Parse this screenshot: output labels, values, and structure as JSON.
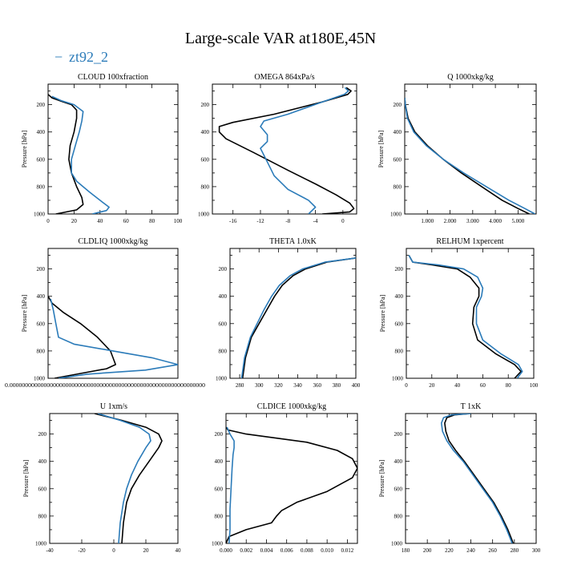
{
  "figure": {
    "title": "Large-scale VAR at180E,45N",
    "legend_label": "zt92_2",
    "legend_mark": "−"
  },
  "colors": {
    "series_ref": "#000000",
    "series_zt92_2": "#2b7bb9"
  },
  "chart_data": [
    {
      "type": "line",
      "title": "CLOUD  100xfraction",
      "ylabel": "Pressure [hPa]",
      "xlim": [
        0,
        100
      ],
      "ylim": [
        1000,
        50
      ],
      "xticks": [
        0,
        20,
        40,
        60,
        80,
        100
      ],
      "xtick_labels": [
        "0",
        "20",
        "40",
        "60",
        "80",
        "100"
      ],
      "yticks": [
        200,
        400,
        600,
        800,
        1000
      ],
      "series": [
        {
          "name": "reference",
          "color": "#000000",
          "x": [
            0,
            3,
            10,
            18,
            22,
            22,
            20,
            17,
            16,
            18,
            22,
            26,
            27,
            22,
            6
          ],
          "y": [
            125,
            150,
            175,
            200,
            240,
            300,
            400,
            500,
            600,
            700,
            800,
            880,
            930,
            970,
            1000
          ]
        },
        {
          "name": "zt92_2",
          "color": "#2b7bb9",
          "x": [
            3,
            10,
            20,
            27,
            26,
            24,
            21,
            18,
            18,
            22,
            32,
            40,
            47,
            45,
            34
          ],
          "y": [
            140,
            170,
            200,
            250,
            320,
            400,
            500,
            600,
            700,
            760,
            840,
            900,
            950,
            975,
            1000
          ]
        }
      ]
    },
    {
      "type": "line",
      "title": "OMEGA  864xPa/s",
      "ylabel": "",
      "xlim": [
        -19,
        2
      ],
      "ylim": [
        1000,
        50
      ],
      "xticks": [
        -16,
        -12,
        -8,
        -4,
        0
      ],
      "xtick_labels": [
        "-16",
        "-12",
        "-8",
        "-4",
        "0"
      ],
      "yticks": [
        200,
        400,
        600,
        800,
        1000
      ],
      "series": [
        {
          "name": "reference",
          "color": "#000000",
          "x": [
            0.5,
            1.2,
            0.7,
            -3,
            -10,
            -16,
            -18,
            -18,
            -17,
            -13,
            -8,
            -4,
            -1,
            1,
            1.6,
            1,
            -3
          ],
          "y": [
            75,
            100,
            125,
            180,
            270,
            330,
            360,
            400,
            450,
            550,
            680,
            780,
            860,
            920,
            960,
            985,
            1000
          ]
        },
        {
          "name": "zt92_2",
          "color": "#2b7bb9",
          "x": [
            0.3,
            0.8,
            0.2,
            -3,
            -8,
            -11.5,
            -12,
            -11,
            -11,
            -12,
            -11,
            -10,
            -8,
            -5,
            -4,
            -5
          ],
          "y": [
            75,
            100,
            125,
            180,
            270,
            320,
            360,
            420,
            470,
            520,
            620,
            720,
            820,
            900,
            950,
            1000
          ]
        }
      ]
    },
    {
      "type": "line",
      "title": "Q  1000xkg/kg",
      "ylabel": "Pressure [hPa]",
      "xlim": [
        0,
        5.8
      ],
      "ylim": [
        1000,
        50
      ],
      "xticks": [
        1.0,
        2.0,
        3.0,
        4.0,
        5.0
      ],
      "xtick_labels": [
        "1.000",
        "2.000",
        "3.000",
        "4.000",
        "5.000"
      ],
      "yticks": [
        200,
        400,
        600,
        800,
        1000
      ],
      "series": [
        {
          "name": "reference",
          "color": "#000000",
          "x": [
            0.0,
            0.03,
            0.15,
            0.45,
            1.0,
            1.7,
            2.5,
            3.4,
            4.3,
            5.0,
            5.5
          ],
          "y": [
            150,
            200,
            300,
            400,
            500,
            600,
            700,
            800,
            900,
            960,
            1000
          ]
        },
        {
          "name": "zt92_2",
          "color": "#2b7bb9",
          "x": [
            0.0,
            0.03,
            0.12,
            0.4,
            0.95,
            1.7,
            2.6,
            3.6,
            4.6,
            5.3,
            5.75
          ],
          "y": [
            150,
            200,
            300,
            400,
            500,
            600,
            700,
            800,
            900,
            960,
            1000
          ]
        }
      ]
    },
    {
      "type": "line",
      "title": "CLDLIQ  1000xkg/kg",
      "ylabel": "Pressure [hPa]",
      "xlim": [
        0,
        1
      ],
      "ylim": [
        1000,
        50
      ],
      "xticks": [],
      "xtick_labels": [],
      "xtick_overflow_text": "0.000000000000000000000000000000000000000000000000000000000000000",
      "yticks": [
        200,
        400,
        600,
        800,
        1000
      ],
      "series": [
        {
          "name": "reference",
          "color": "#000000",
          "x": [
            0.0,
            0.03,
            0.12,
            0.25,
            0.38,
            0.48,
            0.52,
            0.45,
            0.25,
            0.05
          ],
          "y": [
            400,
            450,
            520,
            600,
            700,
            800,
            900,
            930,
            965,
            1000
          ]
        },
        {
          "name": "zt92_2",
          "color": "#2b7bb9",
          "x": [
            0.02,
            0.04,
            0.06,
            0.08,
            0.2,
            0.5,
            0.8,
            1.0,
            0.75,
            0.3,
            0.08
          ],
          "y": [
            420,
            500,
            600,
            700,
            750,
            800,
            850,
            900,
            940,
            970,
            1000
          ]
        }
      ]
    },
    {
      "type": "line",
      "title": "THETA  1.0xK",
      "ylabel": "",
      "xlim": [
        270,
        400
      ],
      "ylim": [
        1000,
        50
      ],
      "xticks": [
        280,
        300,
        320,
        340,
        360,
        380,
        400
      ],
      "xtick_labels": [
        "280",
        "300",
        "320",
        "340",
        "360",
        "380",
        "400"
      ],
      "yticks": [
        200,
        400,
        600,
        800,
        1000
      ],
      "series": [
        {
          "name": "reference",
          "color": "#000000",
          "x": [
            400,
            370,
            348,
            335,
            324,
            316,
            308,
            300,
            292,
            286,
            283
          ],
          "y": [
            120,
            150,
            200,
            250,
            320,
            400,
            500,
            600,
            700,
            850,
            1000
          ]
        },
        {
          "name": "zt92_2",
          "color": "#2b7bb9",
          "x": [
            400,
            368,
            345,
            332,
            321,
            313,
            305,
            298,
            291,
            285,
            282
          ],
          "y": [
            120,
            150,
            200,
            250,
            320,
            400,
            500,
            600,
            700,
            850,
            1000
          ]
        }
      ]
    },
    {
      "type": "line",
      "title": "RELHUM  1xpercent",
      "ylabel": "Pressure [hPa]",
      "xlim": [
        0,
        100
      ],
      "ylim": [
        1000,
        50
      ],
      "xticks": [
        0,
        20,
        40,
        60,
        80,
        100
      ],
      "xtick_labels": [
        "0",
        "20",
        "40",
        "60",
        "80",
        "100"
      ],
      "yticks": [
        200,
        400,
        600,
        800,
        1000
      ],
      "series": [
        {
          "name": "reference",
          "color": "#000000",
          "x": [
            2,
            5,
            20,
            40,
            50,
            57,
            57,
            53,
            52,
            56,
            70,
            85,
            90,
            85
          ],
          "y": [
            100,
            150,
            170,
            200,
            260,
            340,
            400,
            480,
            600,
            720,
            820,
            900,
            950,
            1000
          ]
        },
        {
          "name": "zt92_2",
          "color": "#2b7bb9",
          "x": [
            2,
            5,
            25,
            45,
            56,
            60,
            59,
            55,
            55,
            60,
            74,
            88,
            91,
            87
          ],
          "y": [
            100,
            150,
            170,
            200,
            260,
            340,
            400,
            480,
            600,
            720,
            820,
            900,
            950,
            1000
          ]
        }
      ]
    },
    {
      "type": "line",
      "title": "U  1xm/s",
      "ylabel": "Pressure [hPa]",
      "xlim": [
        -40,
        40
      ],
      "ylim": [
        1000,
        50
      ],
      "xticks": [
        -40,
        -20,
        0,
        20,
        40
      ],
      "xtick_labels": [
        "-40",
        "-20",
        "0",
        "20",
        "40"
      ],
      "yticks": [
        200,
        400,
        600,
        800,
        1000
      ],
      "series": [
        {
          "name": "reference",
          "color": "#000000",
          "x": [
            -12,
            5,
            20,
            28,
            30,
            28,
            22,
            16,
            11,
            8,
            6,
            5
          ],
          "y": [
            50,
            100,
            150,
            200,
            250,
            300,
            400,
            500,
            600,
            700,
            850,
            1000
          ]
        },
        {
          "name": "zt92_2",
          "color": "#2b7bb9",
          "x": [
            -10,
            4,
            16,
            22,
            23,
            20,
            15,
            11,
            8,
            6,
            4,
            3
          ],
          "y": [
            50,
            100,
            150,
            200,
            250,
            300,
            400,
            500,
            600,
            700,
            850,
            1000
          ]
        }
      ]
    },
    {
      "type": "line",
      "title": "CLDICE  1000xkg/kg",
      "ylabel": "",
      "xlim": [
        0,
        0.013
      ],
      "ylim": [
        1000,
        50
      ],
      "xticks": [
        0.0,
        0.002,
        0.004,
        0.006,
        0.008,
        0.01,
        0.012
      ],
      "xtick_labels": [
        "0.000",
        "0.002",
        "0.004",
        "0.006",
        "0.008",
        "0.010",
        "0.012"
      ],
      "yticks": [
        200,
        400,
        600,
        800,
        1000
      ],
      "series": [
        {
          "name": "reference",
          "color": "#000000",
          "x": [
            0.0,
            0.0002,
            0.002,
            0.008,
            0.011,
            0.0125,
            0.013,
            0.0125,
            0.01,
            0.007,
            0.0055,
            0.005,
            0.0045,
            0.002,
            0.0003,
            0.0
          ],
          "y": [
            150,
            170,
            200,
            260,
            320,
            380,
            450,
            520,
            620,
            700,
            760,
            800,
            850,
            900,
            950,
            1000
          ]
        },
        {
          "name": "zt92_2",
          "color": "#2b7bb9",
          "x": [
            0.0001,
            0.0004,
            0.0008,
            0.0008,
            0.0007,
            0.0006,
            0.0005,
            0.0004,
            0.0004,
            0.0003
          ],
          "y": [
            150,
            200,
            250,
            300,
            350,
            450,
            600,
            750,
            900,
            1000
          ]
        }
      ]
    },
    {
      "type": "line",
      "title": "T  1xK",
      "ylabel": "Pressure [hPa]",
      "xlim": [
        180,
        300
      ],
      "ylim": [
        1000,
        50
      ],
      "xticks": [
        180,
        200,
        220,
        240,
        260,
        280,
        300
      ],
      "xtick_labels": [
        "180",
        "200",
        "220",
        "240",
        "260",
        "280",
        "300"
      ],
      "yticks": [
        200,
        400,
        600,
        800,
        1000
      ],
      "series": [
        {
          "name": "reference",
          "color": "#000000",
          "x": [
            240,
            225,
            218,
            216,
            217,
            220,
            226,
            234,
            243,
            252,
            261,
            268,
            274,
            279
          ],
          "y": [
            50,
            60,
            80,
            120,
            180,
            250,
            320,
            400,
            500,
            600,
            700,
            800,
            900,
            1000
          ]
        },
        {
          "name": "zt92_2",
          "color": "#2b7bb9",
          "x": [
            240,
            222,
            215,
            213,
            214,
            218,
            224,
            233,
            242,
            251,
            260,
            267,
            273,
            278
          ],
          "y": [
            50,
            60,
            80,
            120,
            180,
            250,
            320,
            400,
            500,
            600,
            700,
            800,
            900,
            1000
          ]
        }
      ]
    }
  ]
}
